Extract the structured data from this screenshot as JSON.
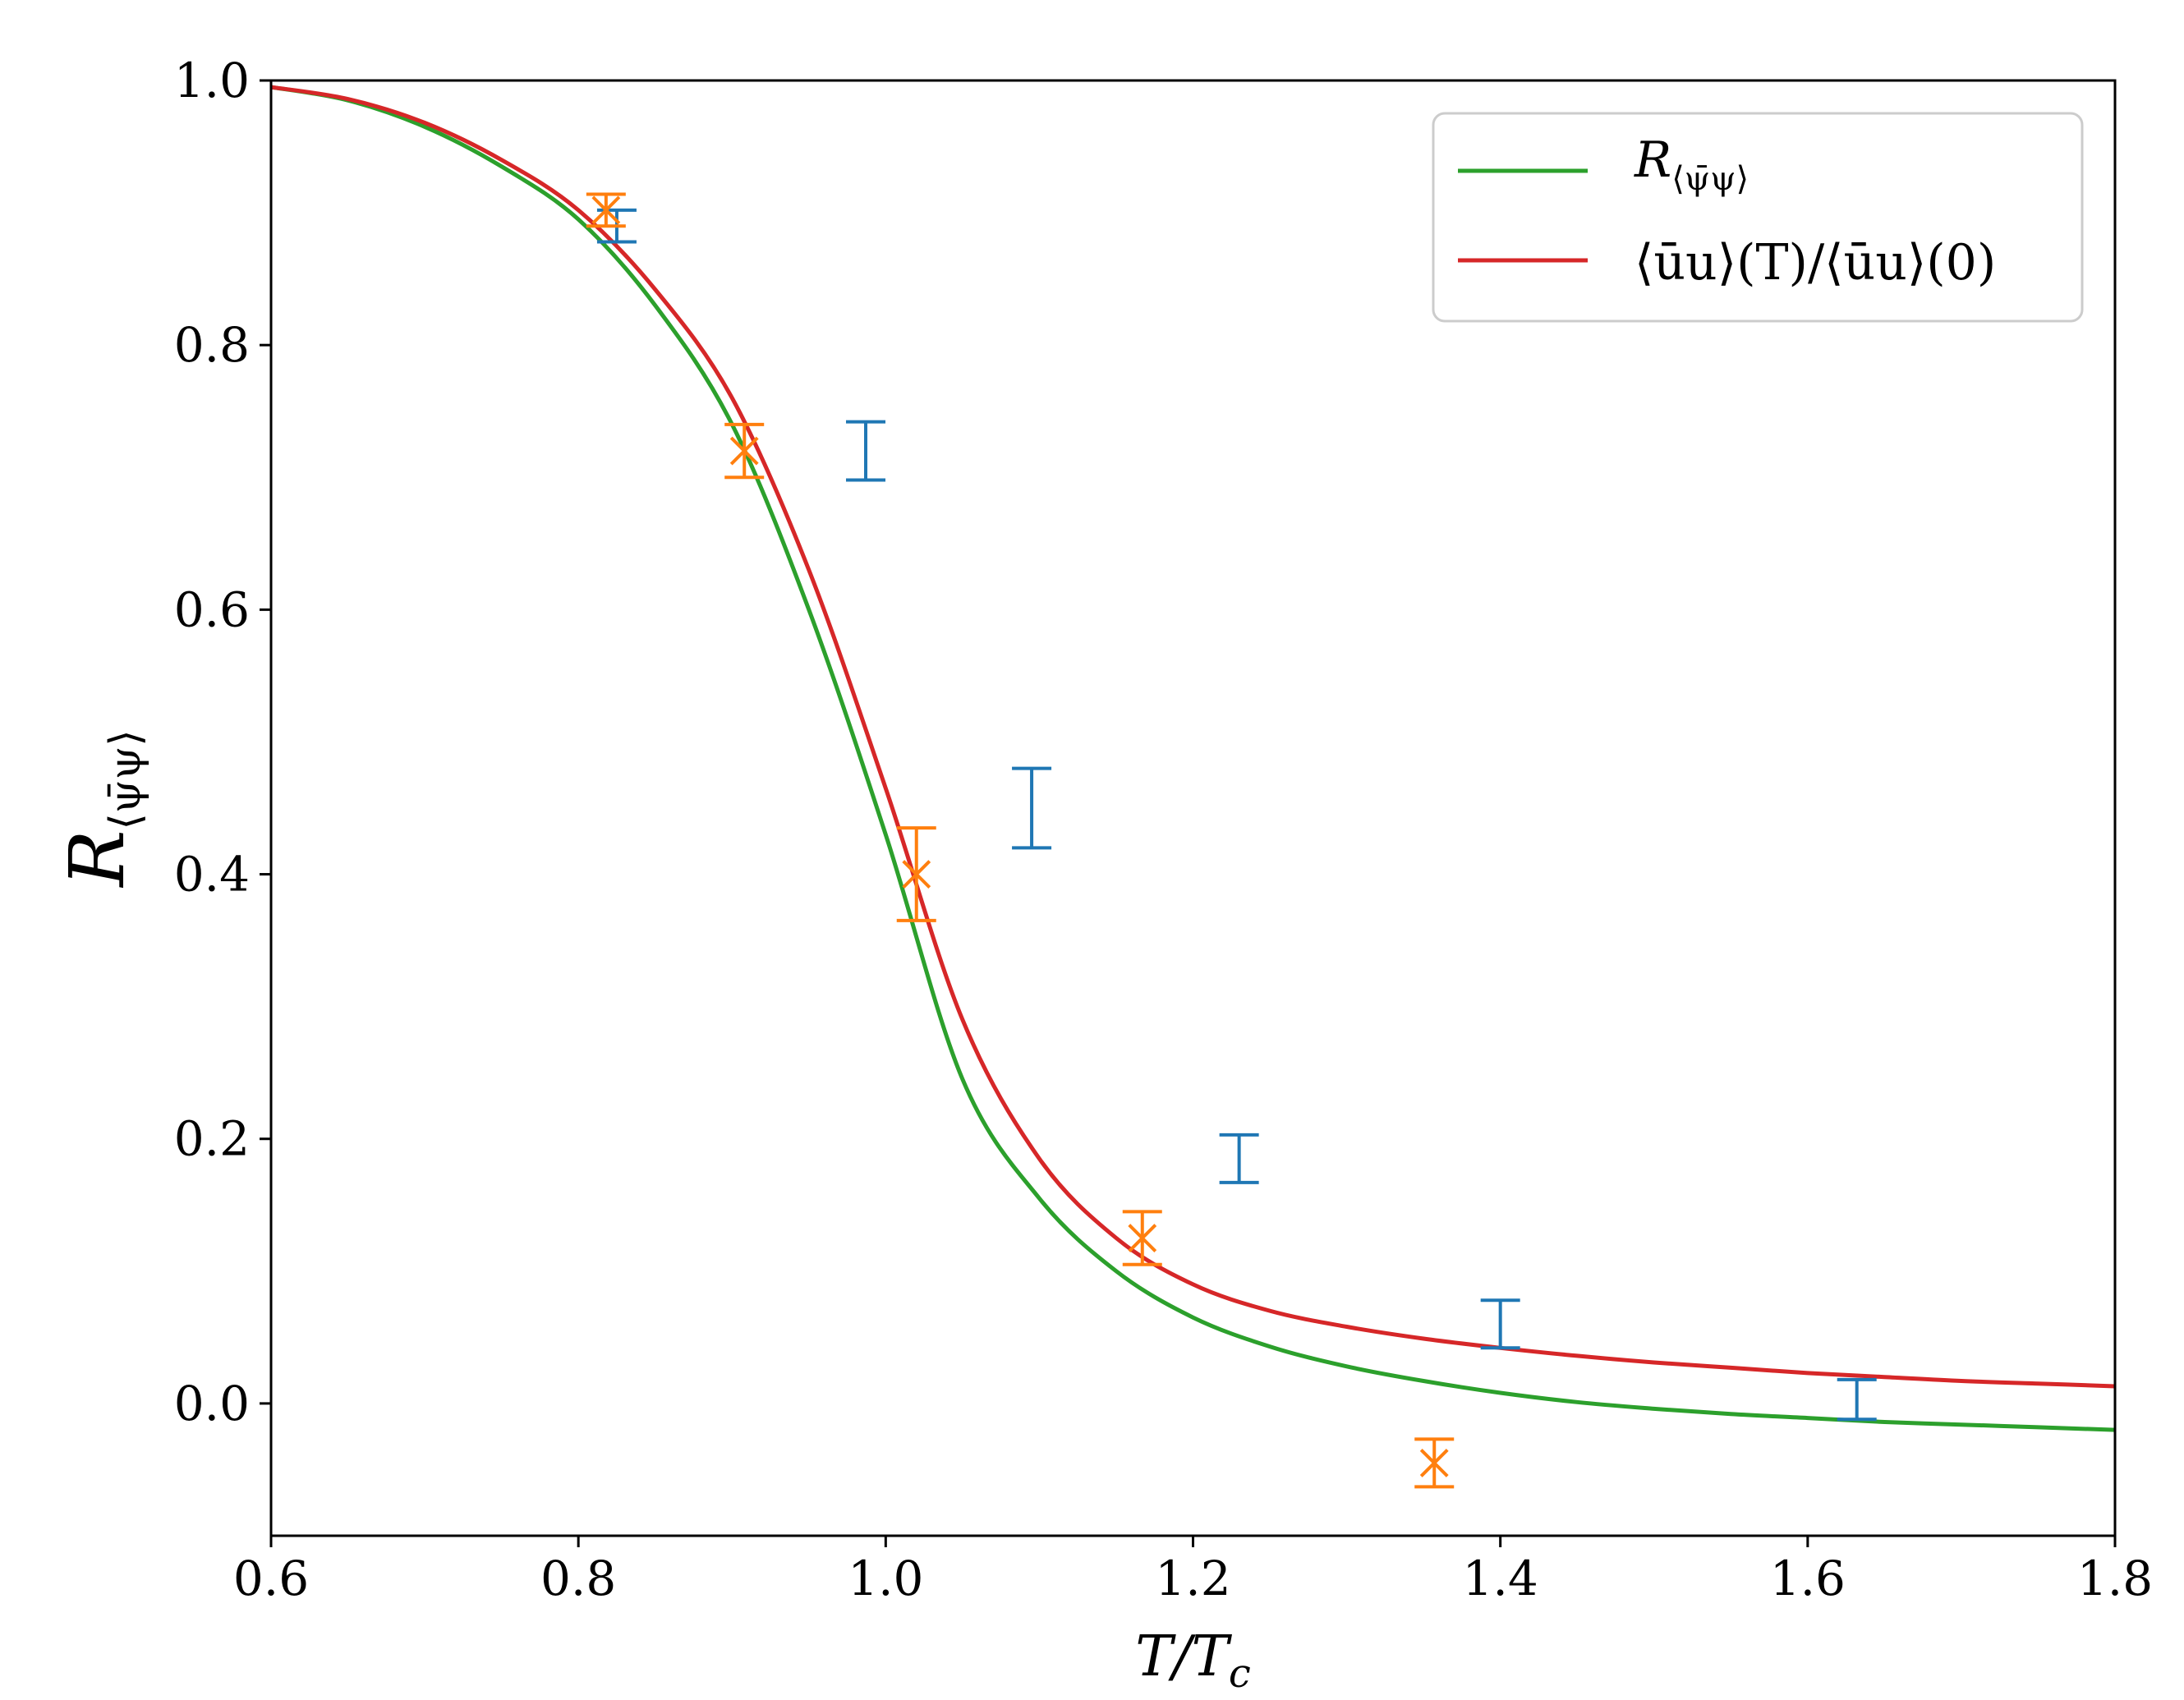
{
  "chart_data": {
    "type": "line",
    "xlabel": "T/T",
    "xlabel_sub": "c",
    "ylabel": "R",
    "ylabel_sub": "⟨ψ̄ψ⟩",
    "xlim": [
      0.6,
      1.8
    ],
    "ylim": [
      -0.1,
      1.0
    ],
    "xticks": [
      0.6,
      0.8,
      1.0,
      1.2,
      1.4,
      1.6,
      1.8
    ],
    "xtick_labels": [
      "0.6",
      "0.8",
      "1.0",
      "1.2",
      "1.4",
      "1.6",
      "1.8"
    ],
    "yticks": [
      0.0,
      0.2,
      0.4,
      0.6,
      0.8,
      1.0
    ],
    "ytick_labels": [
      "0.0",
      "0.2",
      "0.4",
      "0.6",
      "0.8",
      "1.0"
    ],
    "grid": false,
    "legend_position": "top-right",
    "colors": {
      "green": "#2ca02c",
      "red": "#d62728",
      "blue": "#1f77b4",
      "orange": "#ff7f0e"
    },
    "series": [
      {
        "name": "R⟨ψ̄ψ⟩",
        "name_main": "R",
        "name_sub": "⟨ψ̄ψ⟩",
        "color": "#2ca02c",
        "kind": "line",
        "x": [
          0.6,
          0.65,
          0.7,
          0.75,
          0.8,
          0.85,
          0.9,
          0.95,
          1.0,
          1.05,
          1.1,
          1.15,
          1.2,
          1.25,
          1.3,
          1.35,
          1.4,
          1.45,
          1.5,
          1.55,
          1.6,
          1.65,
          1.7,
          1.75,
          1.8
        ],
        "y": [
          0.995,
          0.985,
          0.965,
          0.935,
          0.895,
          0.83,
          0.74,
          0.6,
          0.43,
          0.245,
          0.155,
          0.1,
          0.065,
          0.043,
          0.028,
          0.017,
          0.008,
          0.001,
          -0.004,
          -0.008,
          -0.011,
          -0.014,
          -0.016,
          -0.018,
          -0.02
        ]
      },
      {
        "name": "⟨ūu⟩(T)/⟨ūu⟩(0)",
        "color": "#d62728",
        "kind": "line",
        "x": [
          0.6,
          0.65,
          0.7,
          0.75,
          0.8,
          0.85,
          0.9,
          0.95,
          1.0,
          1.05,
          1.1,
          1.15,
          1.2,
          1.25,
          1.3,
          1.35,
          1.4,
          1.45,
          1.5,
          1.55,
          1.6,
          1.65,
          1.7,
          1.75,
          1.8
        ],
        "y": [
          0.995,
          0.986,
          0.968,
          0.94,
          0.902,
          0.842,
          0.76,
          0.63,
          0.465,
          0.29,
          0.185,
          0.125,
          0.09,
          0.07,
          0.058,
          0.049,
          0.042,
          0.036,
          0.031,
          0.027,
          0.023,
          0.02,
          0.017,
          0.015,
          0.013
        ]
      },
      {
        "color": "#1f77b4",
        "kind": "errorbar",
        "marker": "none",
        "points": [
          {
            "x": 0.825,
            "y": 0.89,
            "err": 0.012
          },
          {
            "x": 0.987,
            "y": 0.72,
            "err": 0.022
          },
          {
            "x": 1.095,
            "y": 0.45,
            "err": 0.03
          },
          {
            "x": 1.23,
            "y": 0.185,
            "err": 0.018
          },
          {
            "x": 1.4,
            "y": 0.06,
            "err": 0.018
          },
          {
            "x": 1.632,
            "y": 0.003,
            "err": 0.015
          }
        ]
      },
      {
        "color": "#ff7f0e",
        "kind": "errorbar",
        "marker": "x",
        "points": [
          {
            "x": 0.818,
            "y": 0.902,
            "err": 0.012
          },
          {
            "x": 0.908,
            "y": 0.72,
            "err": 0.02
          },
          {
            "x": 1.02,
            "y": 0.4,
            "err": 0.035
          },
          {
            "x": 1.167,
            "y": 0.125,
            "err": 0.02
          },
          {
            "x": 1.357,
            "y": -0.045,
            "err": 0.018
          }
        ]
      }
    ]
  }
}
